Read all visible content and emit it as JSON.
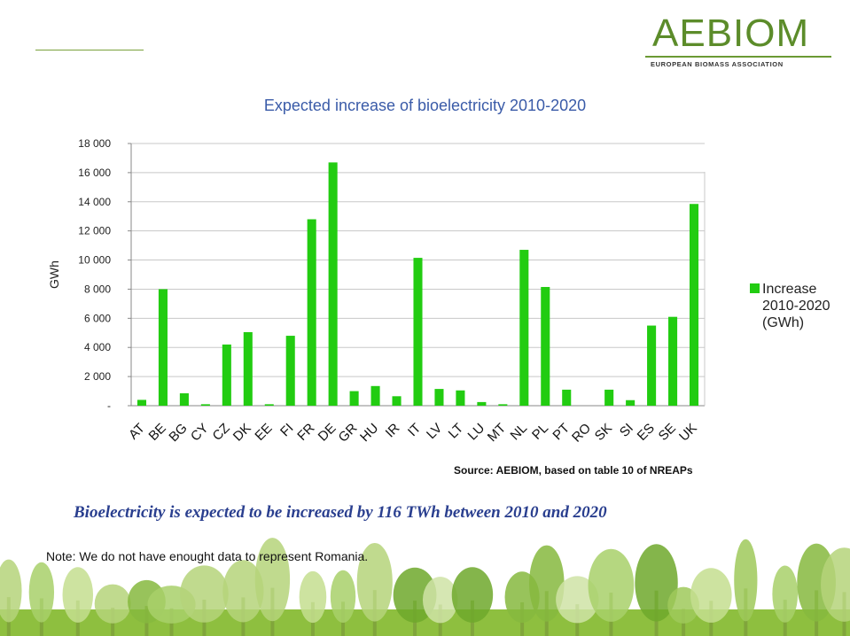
{
  "logo": {
    "name": "AEBIOM",
    "subtitle": "EUROPEAN BIOMASS ASSOCIATION"
  },
  "colors": {
    "bar": "#22cc11",
    "title": "#3a5ba8",
    "headline": "#2a3f8f",
    "logo": "#5c8c2a"
  },
  "chart_data": {
    "type": "bar",
    "title": "Expected increase of bioelectricity 2010-2020",
    "ylabel": "GWh",
    "xlabel": "",
    "ylim": [
      0,
      18000
    ],
    "yticks": [
      "18 000",
      "16 000",
      "14 000",
      "12 000",
      "10 000",
      "8 000",
      "6 000",
      "4 000",
      "2 000",
      "-"
    ],
    "grid": "horizontal",
    "legend_position": "right",
    "categories": [
      "AT",
      "BE",
      "BG",
      "CY",
      "CZ",
      "DK",
      "EE",
      "FI",
      "FR",
      "DE",
      "GR",
      "HU",
      "IR",
      "IT",
      "LV",
      "LT",
      "LU",
      "MT",
      "NL",
      "PL",
      "PT",
      "RO",
      "SK",
      "SI",
      "ES",
      "SE",
      "UK"
    ],
    "series": [
      {
        "name": "Increase 2010-2020 (GWh)",
        "values": [
          400,
          8000,
          850,
          100,
          4200,
          5050,
          100,
          4800,
          12800,
          16700,
          1000,
          1350,
          650,
          10150,
          1150,
          1050,
          250,
          100,
          10700,
          8150,
          1100,
          0,
          1100,
          380,
          5500,
          6100,
          13850
        ]
      }
    ]
  },
  "source": "Source: AEBIOM, based on table 10 of NREAPs",
  "headline": "Bioelectricity is expected to be increased by 116 TWh between 2010 and 2020",
  "note": "Note: We do not have enought data to represent Romania."
}
